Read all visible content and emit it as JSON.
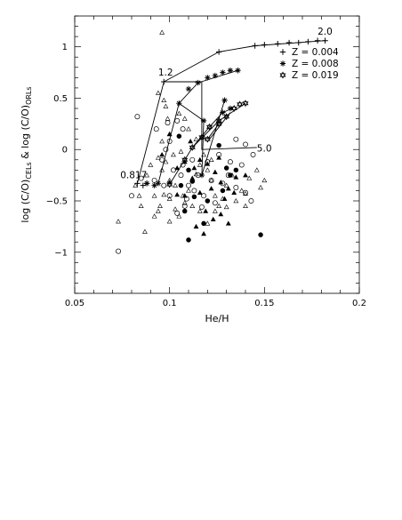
{
  "chart_data": {
    "type": "scatter",
    "xlabel": "He/H",
    "ylabel": "log (C/O)_CELs & log (C/O)_ORLs",
    "xlim": [
      0.05,
      0.2
    ],
    "ylim": [
      -1.4,
      1.3
    ],
    "xticks": [
      {
        "v": 0.05,
        "t": "0.05"
      },
      {
        "v": 0.1,
        "t": "0.1"
      },
      {
        "v": 0.15,
        "t": "0.15"
      },
      {
        "v": 0.2,
        "t": "0.2"
      }
    ],
    "yticks": [
      {
        "v": -1,
        "t": "−1"
      },
      {
        "v": -0.5,
        "t": "−0.5"
      },
      {
        "v": 0,
        "t": "0"
      },
      {
        "v": 0.5,
        "t": "0.5"
      },
      {
        "v": 1,
        "t": "1"
      }
    ],
    "legend": {
      "placement": "top-right",
      "entries": [
        {
          "marker": "plus",
          "text": "Z = 0.004"
        },
        {
          "marker": "asterisk",
          "text": "Z = 0.008"
        },
        {
          "marker": "star",
          "text": "Z = 0.019"
        }
      ]
    },
    "mass_labels": [
      {
        "text": "2.0",
        "x": 0.178,
        "y": 1.12
      },
      {
        "text": "1.2",
        "x": 0.094,
        "y": 0.72
      },
      {
        "text": "0.817",
        "x": 0.074,
        "y": -0.28
      },
      {
        "text": "5.0",
        "x": 0.146,
        "y": -0.02
      }
    ],
    "model_tracks": [
      {
        "name": "Z = 0.004",
        "marker": "plus",
        "points": [
          [
            0.083,
            -0.33
          ],
          [
            0.086,
            -0.35
          ],
          [
            0.088,
            -0.33
          ],
          [
            0.097,
            0.66
          ],
          [
            0.126,
            0.95
          ],
          [
            0.145,
            1.01
          ],
          [
            0.15,
            1.02
          ],
          [
            0.157,
            1.03
          ],
          [
            0.163,
            1.04
          ],
          [
            0.168,
            1.04
          ],
          [
            0.173,
            1.05
          ],
          [
            0.178,
            1.06
          ],
          [
            0.182,
            1.06
          ]
        ]
      },
      {
        "name": "Z = 0.008",
        "marker": "asterisk",
        "points": [
          [
            0.088,
            -0.33
          ],
          [
            0.092,
            -0.35
          ],
          [
            0.094,
            -0.33
          ],
          [
            0.105,
            0.45
          ],
          [
            0.11,
            0.59
          ],
          [
            0.115,
            0.65
          ],
          [
            0.12,
            0.7
          ],
          [
            0.124,
            0.72
          ],
          [
            0.128,
            0.75
          ],
          [
            0.132,
            0.77
          ],
          [
            0.136,
            0.77
          ],
          [
            0.129,
            0.48
          ],
          [
            0.118,
            0.28
          ],
          [
            0.117,
            -0.25
          ],
          [
            0.128,
            0.36
          ],
          [
            0.132,
            0.4
          ]
        ]
      },
      {
        "name": "Z = 0.019",
        "marker": "star",
        "points": [
          [
            0.1,
            -0.34
          ],
          [
            0.108,
            -0.1
          ],
          [
            0.112,
            0.02
          ],
          [
            0.117,
            0.12
          ],
          [
            0.121,
            0.22
          ],
          [
            0.126,
            0.28
          ],
          [
            0.13,
            0.32
          ],
          [
            0.134,
            0.4
          ],
          [
            0.137,
            0.44
          ],
          [
            0.14,
            0.45
          ],
          [
            0.126,
            0.25
          ],
          [
            0.12,
            0.1
          ]
        ]
      }
    ],
    "line_segments": [
      [
        [
          0.083,
          -0.33
        ],
        [
          0.097,
          0.66
        ]
      ],
      [
        [
          0.097,
          0.66
        ],
        [
          0.126,
          0.95
        ]
      ],
      [
        [
          0.126,
          0.95
        ],
        [
          0.145,
          1.01
        ]
      ],
      [
        [
          0.145,
          1.01
        ],
        [
          0.182,
          1.06
        ]
      ],
      [
        [
          0.097,
          0.66
        ],
        [
          0.117,
          0.66
        ],
        [
          0.117,
          0.0
        ],
        [
          0.146,
          0.02
        ]
      ],
      [
        [
          0.094,
          -0.33
        ],
        [
          0.105,
          0.45
        ],
        [
          0.115,
          0.65
        ],
        [
          0.136,
          0.77
        ]
      ],
      [
        [
          0.105,
          0.45
        ],
        [
          0.118,
          0.28
        ],
        [
          0.117,
          -0.25
        ]
      ],
      [
        [
          0.129,
          0.48
        ],
        [
          0.117,
          -0.25
        ]
      ],
      [
        [
          0.1,
          -0.34
        ],
        [
          0.112,
          0.02
        ],
        [
          0.126,
          0.28
        ],
        [
          0.14,
          0.45
        ]
      ],
      [
        [
          0.112,
          0.02
        ],
        [
          0.121,
          0.22
        ],
        [
          0.128,
          0.36
        ],
        [
          0.133,
          0.4
        ]
      ],
      [
        [
          0.12,
          0.1
        ],
        [
          0.126,
          0.25
        ]
      ],
      [
        [
          0.121,
          0.1
        ],
        [
          0.132,
          0.36
        ]
      ]
    ],
    "observations": {
      "open_triangle": [
        [
          0.096,
          1.14
        ],
        [
          0.094,
          0.55
        ],
        [
          0.097,
          0.48
        ],
        [
          0.098,
          0.42
        ],
        [
          0.099,
          0.3
        ],
        [
          0.1,
          0.15
        ],
        [
          0.096,
          0.08
        ],
        [
          0.094,
          -0.08
        ],
        [
          0.098,
          -0.12
        ],
        [
          0.102,
          -0.05
        ],
        [
          0.106,
          -0.02
        ],
        [
          0.1,
          -0.3
        ],
        [
          0.097,
          -0.44
        ],
        [
          0.094,
          -0.6
        ],
        [
          0.092,
          -0.65
        ],
        [
          0.085,
          -0.55
        ],
        [
          0.1,
          -0.7
        ],
        [
          0.103,
          -0.58
        ],
        [
          0.105,
          -0.65
        ],
        [
          0.108,
          -0.52
        ],
        [
          0.11,
          -0.4
        ],
        [
          0.112,
          -0.3
        ],
        [
          0.114,
          -0.24
        ],
        [
          0.116,
          -0.15
        ],
        [
          0.118,
          -0.05
        ],
        [
          0.12,
          -0.2
        ],
        [
          0.122,
          -0.3
        ],
        [
          0.124,
          -0.45
        ],
        [
          0.126,
          -0.55
        ],
        [
          0.128,
          -0.48
        ],
        [
          0.13,
          -0.35
        ],
        [
          0.133,
          -0.25
        ],
        [
          0.135,
          -0.5
        ],
        [
          0.138,
          -0.4
        ],
        [
          0.14,
          -0.43
        ],
        [
          0.142,
          -0.28
        ],
        [
          0.146,
          -0.2
        ],
        [
          0.148,
          -0.37
        ],
        [
          0.15,
          -0.3
        ],
        [
          0.118,
          0.12
        ],
        [
          0.122,
          -0.1
        ],
        [
          0.114,
          0.1
        ],
        [
          0.11,
          0.2
        ],
        [
          0.105,
          0.35
        ],
        [
          0.108,
          0.3
        ],
        [
          0.09,
          -0.15
        ],
        [
          0.088,
          -0.25
        ],
        [
          0.092,
          -0.45
        ],
        [
          0.095,
          -0.55
        ],
        [
          0.087,
          -0.8
        ],
        [
          0.073,
          -0.7
        ],
        [
          0.082,
          -0.35
        ],
        [
          0.084,
          -0.45
        ],
        [
          0.1,
          -0.48
        ],
        [
          0.096,
          -0.2
        ],
        [
          0.103,
          -0.35
        ],
        [
          0.107,
          -0.45
        ],
        [
          0.112,
          -0.55
        ],
        [
          0.116,
          -0.6
        ],
        [
          0.12,
          -0.72
        ],
        [
          0.124,
          -0.6
        ],
        [
          0.13,
          -0.56
        ],
        [
          0.14,
          -0.55
        ]
      ],
      "open_circle": [
        [
          0.083,
          0.32
        ],
        [
          0.093,
          0.2
        ],
        [
          0.099,
          0.26
        ],
        [
          0.104,
          0.28
        ],
        [
          0.107,
          0.2
        ],
        [
          0.1,
          0.08
        ],
        [
          0.098,
          0.0
        ],
        [
          0.096,
          -0.1
        ],
        [
          0.102,
          -0.2
        ],
        [
          0.106,
          -0.25
        ],
        [
          0.11,
          -0.35
        ],
        [
          0.113,
          -0.4
        ],
        [
          0.118,
          -0.45
        ],
        [
          0.122,
          -0.3
        ],
        [
          0.128,
          -0.33
        ],
        [
          0.131,
          -0.25
        ],
        [
          0.135,
          -0.37
        ],
        [
          0.14,
          -0.42
        ],
        [
          0.143,
          -0.5
        ],
        [
          0.108,
          -0.55
        ],
        [
          0.104,
          -0.62
        ],
        [
          0.1,
          -0.45
        ],
        [
          0.092,
          -0.3
        ],
        [
          0.085,
          -0.28
        ],
        [
          0.08,
          -0.45
        ],
        [
          0.073,
          -0.99
        ],
        [
          0.138,
          -0.15
        ],
        [
          0.132,
          -0.12
        ],
        [
          0.126,
          -0.05
        ],
        [
          0.135,
          0.1
        ],
        [
          0.14,
          0.05
        ],
        [
          0.144,
          -0.05
        ],
        [
          0.112,
          -0.1
        ],
        [
          0.115,
          -0.25
        ],
        [
          0.12,
          -0.12
        ],
        [
          0.107,
          -0.15
        ],
        [
          0.097,
          -0.35
        ],
        [
          0.109,
          -0.48
        ],
        [
          0.117,
          -0.56
        ],
        [
          0.124,
          -0.52
        ]
      ],
      "filled_circle": [
        [
          0.11,
          -0.88
        ],
        [
          0.118,
          -0.72
        ],
        [
          0.12,
          -0.5
        ],
        [
          0.113,
          -0.46
        ],
        [
          0.108,
          -0.6
        ],
        [
          0.112,
          -0.31
        ],
        [
          0.128,
          -0.4
        ],
        [
          0.132,
          -0.25
        ],
        [
          0.135,
          -0.2
        ],
        [
          0.13,
          -0.18
        ],
        [
          0.126,
          0.04
        ],
        [
          0.106,
          -0.35
        ],
        [
          0.148,
          -0.83
        ],
        [
          0.105,
          0.13
        ],
        [
          0.11,
          -0.2
        ]
      ],
      "filled_triangle": [
        [
          0.1,
          0.15
        ],
        [
          0.096,
          -0.05
        ],
        [
          0.104,
          -0.18
        ],
        [
          0.108,
          -0.12
        ],
        [
          0.111,
          0.08
        ],
        [
          0.116,
          -0.1
        ],
        [
          0.12,
          -0.14
        ],
        [
          0.124,
          -0.22
        ],
        [
          0.122,
          -0.38
        ],
        [
          0.127,
          -0.32
        ],
        [
          0.131,
          -0.38
        ],
        [
          0.134,
          -0.42
        ],
        [
          0.116,
          -0.42
        ],
        [
          0.119,
          -0.6
        ],
        [
          0.123,
          -0.68
        ],
        [
          0.127,
          -0.63
        ],
        [
          0.114,
          -0.75
        ],
        [
          0.108,
          -0.45
        ],
        [
          0.104,
          -0.44
        ],
        [
          0.1,
          -0.32
        ],
        [
          0.112,
          -0.28
        ],
        [
          0.131,
          -0.72
        ],
        [
          0.135,
          -0.27
        ],
        [
          0.14,
          -0.25
        ],
        [
          0.118,
          -0.82
        ],
        [
          0.126,
          -0.08
        ],
        [
          0.129,
          -0.48
        ],
        [
          0.113,
          -0.18
        ]
      ]
    }
  }
}
